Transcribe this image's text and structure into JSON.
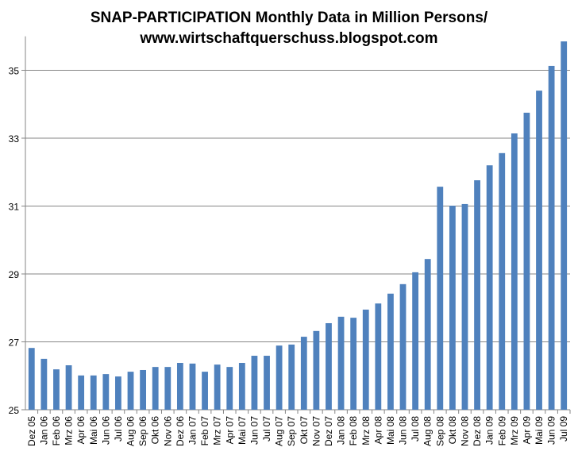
{
  "chart_data": {
    "type": "bar",
    "title": [
      "SNAP-PARTICIPATION Monthly Data in Million Persons/",
      "www.wirtschaftquerschuss.blogspot.com"
    ],
    "xlabel": "",
    "ylabel": "",
    "ylim": [
      25,
      36
    ],
    "yticks": [
      25,
      27,
      29,
      31,
      33,
      35
    ],
    "grid": true,
    "legend": "none",
    "bar_color": "#4F81BD",
    "categories": [
      "Dez 05",
      "Jan 06",
      "Feb 06",
      "Mrz 06",
      "Apr 06",
      "Mai 06",
      "Jun 06",
      "Jul 06",
      "Aug 06",
      "Sep 06",
      "Okt 06",
      "Nov 06",
      "Dez 06",
      "Jan 07",
      "Feb 07",
      "Mrz 07",
      "Apr 07",
      "Mai 07",
      "Jun 07",
      "Jul 07",
      "Aug 07",
      "Sep 07",
      "Okt 07",
      "Nov 07",
      "Dez 07",
      "Jan 08",
      "Feb 08",
      "Mrz 08",
      "Apr 08",
      "Mai 08",
      "Jun 08",
      "Jul 08",
      "Aug 08",
      "Sep 08",
      "Okt 08",
      "Nov 08",
      "Dez 08",
      "Jan 09",
      "Feb 09",
      "Mrz 09",
      "Apr 09",
      "Mai 09",
      "Jun 09",
      "Jul 09"
    ],
    "values": [
      26.82,
      26.5,
      26.19,
      26.31,
      26.01,
      26.01,
      26.05,
      25.98,
      26.12,
      26.17,
      26.26,
      26.26,
      26.38,
      26.36,
      26.12,
      26.33,
      26.26,
      26.38,
      26.59,
      26.59,
      26.89,
      26.92,
      27.15,
      27.32,
      27.55,
      27.74,
      27.71,
      27.95,
      28.13,
      28.42,
      28.7,
      29.05,
      29.44,
      31.57,
      31.01,
      31.06,
      31.76,
      32.2,
      32.56,
      33.14,
      33.75,
      34.4,
      35.13,
      35.85
    ]
  }
}
